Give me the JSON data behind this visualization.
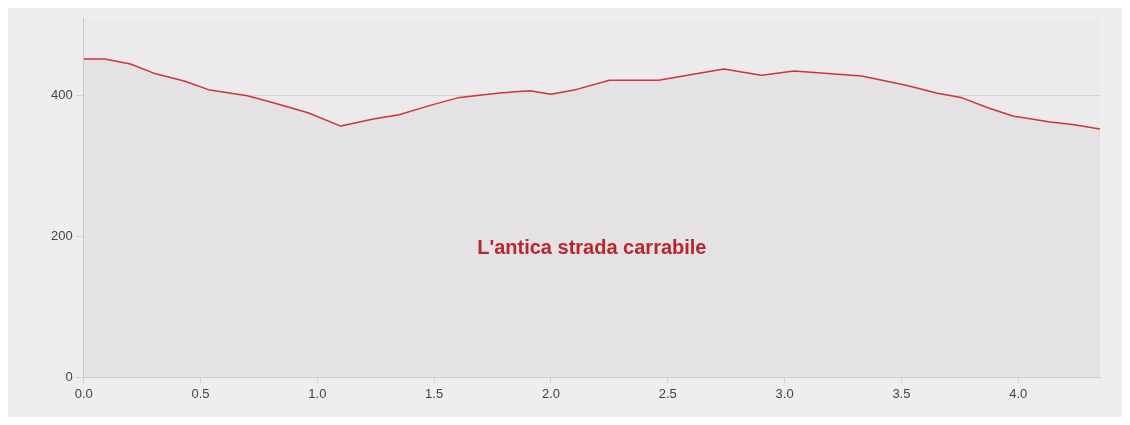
{
  "chart_data": {
    "type": "area",
    "x": [
      0,
      0.09,
      0.2,
      0.3,
      0.43,
      0.54,
      0.7,
      0.8,
      0.96,
      1.1,
      1.24,
      1.35,
      1.48,
      1.6,
      1.78,
      1.91,
      2.0,
      2.11,
      2.25,
      2.46,
      2.74,
      2.9,
      3.04,
      3.33,
      3.52,
      3.65,
      3.76,
      3.87,
      3.98,
      4.13,
      4.24,
      4.35
    ],
    "series": [
      {
        "color": "#d03434",
        "values": [
          451,
          451,
          444,
          431,
          420,
          407,
          399,
          390,
          375,
          356,
          366,
          372,
          385,
          396,
          403,
          406,
          401,
          408,
          421,
          421,
          437,
          428,
          434,
          427,
          414,
          403,
          396,
          382,
          370,
          362,
          358,
          352
        ]
      }
    ],
    "xlim": [
      0,
      4.35
    ],
    "ylim": [
      0,
      508
    ],
    "xticks": [
      {
        "value": 0,
        "label": "0.0"
      },
      {
        "value": 0.5,
        "label": "0.5"
      },
      {
        "value": 1,
        "label": "1.0"
      },
      {
        "value": 1.5,
        "label": "1.5"
      },
      {
        "value": 2,
        "label": "2.0"
      },
      {
        "value": 2.5,
        "label": "2.5"
      },
      {
        "value": 3,
        "label": "3.0"
      },
      {
        "value": 3.5,
        "label": "3.5"
      },
      {
        "value": 4,
        "label": "4.0"
      }
    ],
    "yticks": [
      0,
      200,
      400
    ],
    "grid": "y",
    "legend": false,
    "annotations": [
      "L'antica strada carrabile"
    ]
  }
}
